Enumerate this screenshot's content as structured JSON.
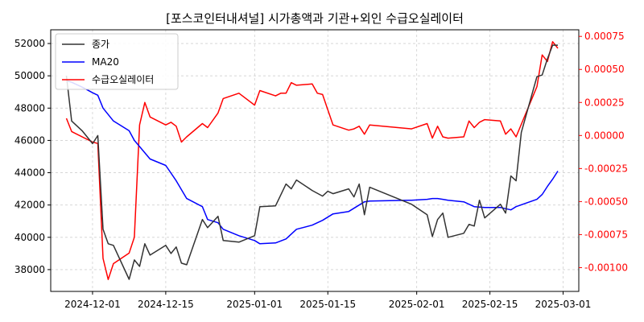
{
  "chart_data": {
    "type": "line",
    "title": "[포스코인터내셔널] 시가총액과 기관+외인 수급오실레이터",
    "legend_position": "top-left",
    "grid": true,
    "x_axis": {
      "type": "date",
      "range": [
        "2024-11-23",
        "2025-03-04"
      ],
      "tick_labels": [
        "2024-12-01",
        "2024-12-15",
        "2025-01-01",
        "2025-01-15",
        "2025-02-01",
        "2025-02-15",
        "2025-03-01"
      ]
    },
    "y_left": {
      "range": [
        36650,
        52850
      ],
      "tick_labels": [
        "38000",
        "40000",
        "42000",
        "44000",
        "46000",
        "48000",
        "50000",
        "52000"
      ]
    },
    "y_right": {
      "range": [
        -0.00118,
        0.0008
      ],
      "color": "#ff0000",
      "tick_labels": [
        "-0.00100",
        "-0.00075",
        "-0.00050",
        "-0.00025",
        "0.00000",
        "0.00025",
        "0.00050",
        "0.00075"
      ]
    },
    "series": [
      {
        "name": "종가",
        "color": "#333333",
        "axis": "left",
        "points": [
          [
            "2024-11-26",
            50000
          ],
          [
            "2024-11-27",
            47200
          ],
          [
            "2024-11-29",
            46600
          ],
          [
            "2024-12-01",
            45800
          ],
          [
            "2024-12-02",
            46300
          ],
          [
            "2024-12-03",
            40500
          ],
          [
            "2024-12-04",
            39600
          ],
          [
            "2024-12-05",
            39500
          ],
          [
            "2024-12-08",
            37400
          ],
          [
            "2024-12-09",
            38600
          ],
          [
            "2024-12-10",
            38200
          ],
          [
            "2024-12-11",
            39600
          ],
          [
            "2024-12-12",
            38900
          ],
          [
            "2024-12-15",
            39500
          ],
          [
            "2024-12-16",
            39000
          ],
          [
            "2024-12-17",
            39400
          ],
          [
            "2024-12-18",
            38400
          ],
          [
            "2024-12-19",
            38300
          ],
          [
            "2024-12-22",
            41100
          ],
          [
            "2024-12-23",
            40600
          ],
          [
            "2024-12-25",
            41300
          ],
          [
            "2024-12-26",
            39800
          ],
          [
            "2024-12-29",
            39700
          ],
          [
            "2025-01-01",
            40100
          ],
          [
            "2025-01-02",
            41900
          ],
          [
            "2025-01-05",
            41950
          ],
          [
            "2025-01-07",
            43300
          ],
          [
            "2025-01-08",
            43000
          ],
          [
            "2025-01-09",
            43550
          ],
          [
            "2025-01-12",
            42900
          ],
          [
            "2025-01-14",
            42550
          ],
          [
            "2025-01-15",
            42850
          ],
          [
            "2025-01-16",
            42700
          ],
          [
            "2025-01-19",
            43000
          ],
          [
            "2025-01-20",
            42500
          ],
          [
            "2025-01-21",
            43300
          ],
          [
            "2025-01-22",
            41400
          ],
          [
            "2025-01-23",
            43100
          ],
          [
            "2025-01-31",
            42050
          ],
          [
            "2025-02-03",
            41400
          ],
          [
            "2025-02-04",
            40050
          ],
          [
            "2025-02-05",
            41100
          ],
          [
            "2025-02-06",
            41500
          ],
          [
            "2025-02-07",
            40000
          ],
          [
            "2025-02-10",
            40250
          ],
          [
            "2025-02-11",
            40800
          ],
          [
            "2025-02-12",
            40700
          ],
          [
            "2025-02-13",
            42300
          ],
          [
            "2025-02-14",
            41200
          ],
          [
            "2025-02-17",
            42050
          ],
          [
            "2025-02-18",
            41500
          ],
          [
            "2025-02-19",
            43800
          ],
          [
            "2025-02-20",
            43500
          ],
          [
            "2025-02-21",
            46500
          ],
          [
            "2025-02-24",
            49950
          ],
          [
            "2025-02-25",
            50050
          ],
          [
            "2025-02-26",
            51050
          ],
          [
            "2025-02-27",
            51900
          ],
          [
            "2025-02-28",
            51900
          ]
        ]
      },
      {
        "name": "MA20",
        "color": "#0000ff",
        "axis": "left",
        "points": [
          [
            "2024-11-26",
            49700
          ],
          [
            "2024-11-27",
            49600
          ],
          [
            "2024-11-29",
            49300
          ],
          [
            "2024-12-01",
            48950
          ],
          [
            "2024-12-02",
            48800
          ],
          [
            "2024-12-03",
            48000
          ],
          [
            "2024-12-05",
            47200
          ],
          [
            "2024-12-08",
            46600
          ],
          [
            "2024-12-09",
            46000
          ],
          [
            "2024-12-12",
            44850
          ],
          [
            "2024-12-15",
            44450
          ],
          [
            "2024-12-17",
            43500
          ],
          [
            "2024-12-19",
            42400
          ],
          [
            "2024-12-22",
            41900
          ],
          [
            "2024-12-23",
            41100
          ],
          [
            "2024-12-25",
            40900
          ],
          [
            "2024-12-26",
            40500
          ],
          [
            "2024-12-29",
            40100
          ],
          [
            "2025-01-01",
            39800
          ],
          [
            "2025-01-02",
            39600
          ],
          [
            "2025-01-05",
            39650
          ],
          [
            "2025-01-07",
            39900
          ],
          [
            "2025-01-09",
            40500
          ],
          [
            "2025-01-12",
            40750
          ],
          [
            "2025-01-14",
            41050
          ],
          [
            "2025-01-16",
            41450
          ],
          [
            "2025-01-19",
            41600
          ],
          [
            "2025-01-21",
            42000
          ],
          [
            "2025-01-22",
            42200
          ],
          [
            "2025-01-23",
            42250
          ],
          [
            "2025-01-31",
            42300
          ],
          [
            "2025-02-03",
            42350
          ],
          [
            "2025-02-04",
            42400
          ],
          [
            "2025-02-05",
            42400
          ],
          [
            "2025-02-06",
            42350
          ],
          [
            "2025-02-07",
            42300
          ],
          [
            "2025-02-10",
            42200
          ],
          [
            "2025-02-11",
            42050
          ],
          [
            "2025-02-12",
            41900
          ],
          [
            "2025-02-14",
            41850
          ],
          [
            "2025-02-17",
            41850
          ],
          [
            "2025-02-19",
            41700
          ],
          [
            "2025-02-20",
            41900
          ],
          [
            "2025-02-24",
            42350
          ],
          [
            "2025-02-25",
            42650
          ],
          [
            "2025-02-26",
            43150
          ],
          [
            "2025-02-27",
            43600
          ],
          [
            "2025-02-28",
            44100
          ]
        ]
      },
      {
        "name": "수급오실레이터",
        "color": "#ff0000",
        "axis": "right",
        "points": [
          [
            "2024-11-26",
            0.00013
          ],
          [
            "2024-11-27",
            3e-05
          ],
          [
            "2024-12-01",
            -5e-05
          ],
          [
            "2024-12-02",
            -6e-05
          ],
          [
            "2024-12-03",
            -0.00093
          ],
          [
            "2024-12-04",
            -0.00109
          ],
          [
            "2024-12-05",
            -0.00097
          ],
          [
            "2024-12-08",
            -0.00089
          ],
          [
            "2024-12-09",
            -0.00077
          ],
          [
            "2024-12-10",
            8e-05
          ],
          [
            "2024-12-11",
            0.00025
          ],
          [
            "2024-12-12",
            0.00014
          ],
          [
            "2024-12-15",
            8e-05
          ],
          [
            "2024-12-16",
            0.0001
          ],
          [
            "2024-12-17",
            7e-05
          ],
          [
            "2024-12-18",
            -5e-05
          ],
          [
            "2024-12-19",
            -1e-05
          ],
          [
            "2024-12-22",
            9e-05
          ],
          [
            "2024-12-23",
            6e-05
          ],
          [
            "2024-12-25",
            0.00017
          ],
          [
            "2024-12-26",
            0.00028
          ],
          [
            "2024-12-29",
            0.00032
          ],
          [
            "2025-01-01",
            0.00023
          ],
          [
            "2025-01-02",
            0.00034
          ],
          [
            "2025-01-05",
            0.0003
          ],
          [
            "2025-01-06",
            0.00032
          ],
          [
            "2025-01-07",
            0.00032
          ],
          [
            "2025-01-08",
            0.0004
          ],
          [
            "2025-01-09",
            0.00038
          ],
          [
            "2025-01-12",
            0.00039
          ],
          [
            "2025-01-13",
            0.00032
          ],
          [
            "2025-01-14",
            0.00031
          ],
          [
            "2025-01-16",
            8e-05
          ],
          [
            "2025-01-19",
            4e-05
          ],
          [
            "2025-01-20",
            5e-05
          ],
          [
            "2025-01-21",
            7e-05
          ],
          [
            "2025-01-22",
            1e-05
          ],
          [
            "2025-01-23",
            8e-05
          ],
          [
            "2025-01-31",
            5e-05
          ],
          [
            "2025-02-03",
            9e-05
          ],
          [
            "2025-02-04",
            -2e-05
          ],
          [
            "2025-02-05",
            7e-05
          ],
          [
            "2025-02-06",
            -1e-05
          ],
          [
            "2025-02-07",
            -2e-05
          ],
          [
            "2025-02-10",
            -1e-05
          ],
          [
            "2025-02-11",
            0.00011
          ],
          [
            "2025-02-12",
            6e-05
          ],
          [
            "2025-02-13",
            0.0001
          ],
          [
            "2025-02-14",
            0.00012
          ],
          [
            "2025-02-17",
            0.00011
          ],
          [
            "2025-02-18",
            1e-05
          ],
          [
            "2025-02-19",
            5e-05
          ],
          [
            "2025-02-20",
            -1e-05
          ],
          [
            "2025-02-24",
            0.00037
          ],
          [
            "2025-02-25",
            0.00061
          ],
          [
            "2025-02-26",
            0.00056
          ],
          [
            "2025-02-27",
            0.00071
          ],
          [
            "2025-02-28",
            0.00066
          ]
        ]
      }
    ]
  }
}
